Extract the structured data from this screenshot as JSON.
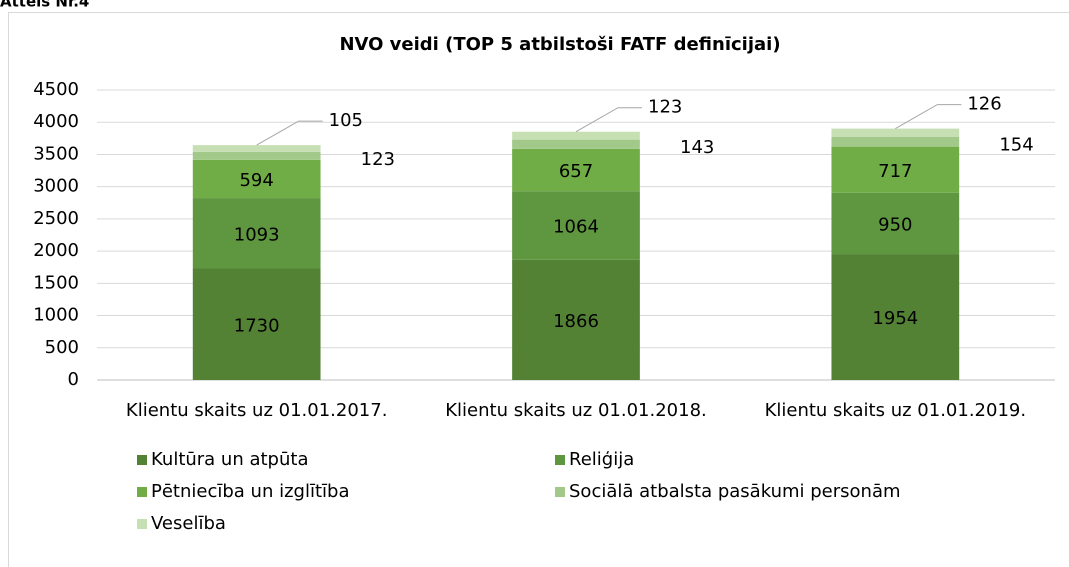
{
  "figure_label": "Attēls Nr.4",
  "chart_data": {
    "type": "stacked_bar",
    "title": "NVO veidi (TOP 5 atbilstoši FATF definīcijai)",
    "categories": [
      "Klientu skaits uz 01.01.2017.",
      "Klientu skaits uz 01.01.2018.",
      "Klientu skaits uz 01.01.2019."
    ],
    "series": [
      {
        "name": "Kultūra un atpūta",
        "color": "#548235",
        "values": [
          1730,
          1866,
          1954
        ]
      },
      {
        "name": "Reliģija",
        "color": "#5f9741",
        "values": [
          1093,
          1064,
          950
        ]
      },
      {
        "name": "Pētniecība un izglītība",
        "color": "#70ad47",
        "values": [
          594,
          657,
          717
        ]
      },
      {
        "name": "Sociālā atbalsta pasākumi personām",
        "color": "#a3c98a",
        "values": [
          123,
          143,
          154
        ]
      },
      {
        "name": "Veselība",
        "color": "#c6e0b4",
        "values": [
          105,
          123,
          126
        ]
      }
    ],
    "ylim": [
      0,
      4500
    ],
    "yticks": [
      0,
      500,
      1000,
      1500,
      2000,
      2500,
      3000,
      3500,
      4000,
      4500
    ],
    "grid": true,
    "legend": "bottom"
  }
}
